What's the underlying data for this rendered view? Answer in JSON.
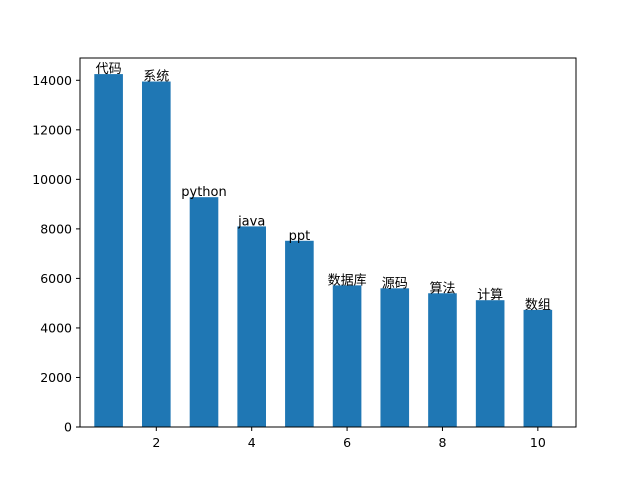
{
  "chart_data": {
    "type": "bar",
    "x": [
      1,
      2,
      3,
      4,
      5,
      6,
      7,
      8,
      9,
      10
    ],
    "values": [
      14250,
      13950,
      9280,
      8100,
      7520,
      5720,
      5600,
      5400,
      5120,
      4730
    ],
    "bar_labels": [
      "代码",
      "系统",
      "python",
      "java",
      "ppt",
      "数据库",
      "源码",
      "算法",
      "计算",
      "数组"
    ],
    "bar_color": "#1f77b4",
    "xlim": [
      0.4,
      10.8
    ],
    "ylim": [
      0,
      14900
    ],
    "x_ticks": [
      2,
      4,
      6,
      8,
      10
    ],
    "y_ticks": [
      0,
      2000,
      4000,
      6000,
      8000,
      10000,
      12000,
      14000
    ],
    "title": "",
    "xlabel": "",
    "ylabel": "",
    "grid": false
  }
}
